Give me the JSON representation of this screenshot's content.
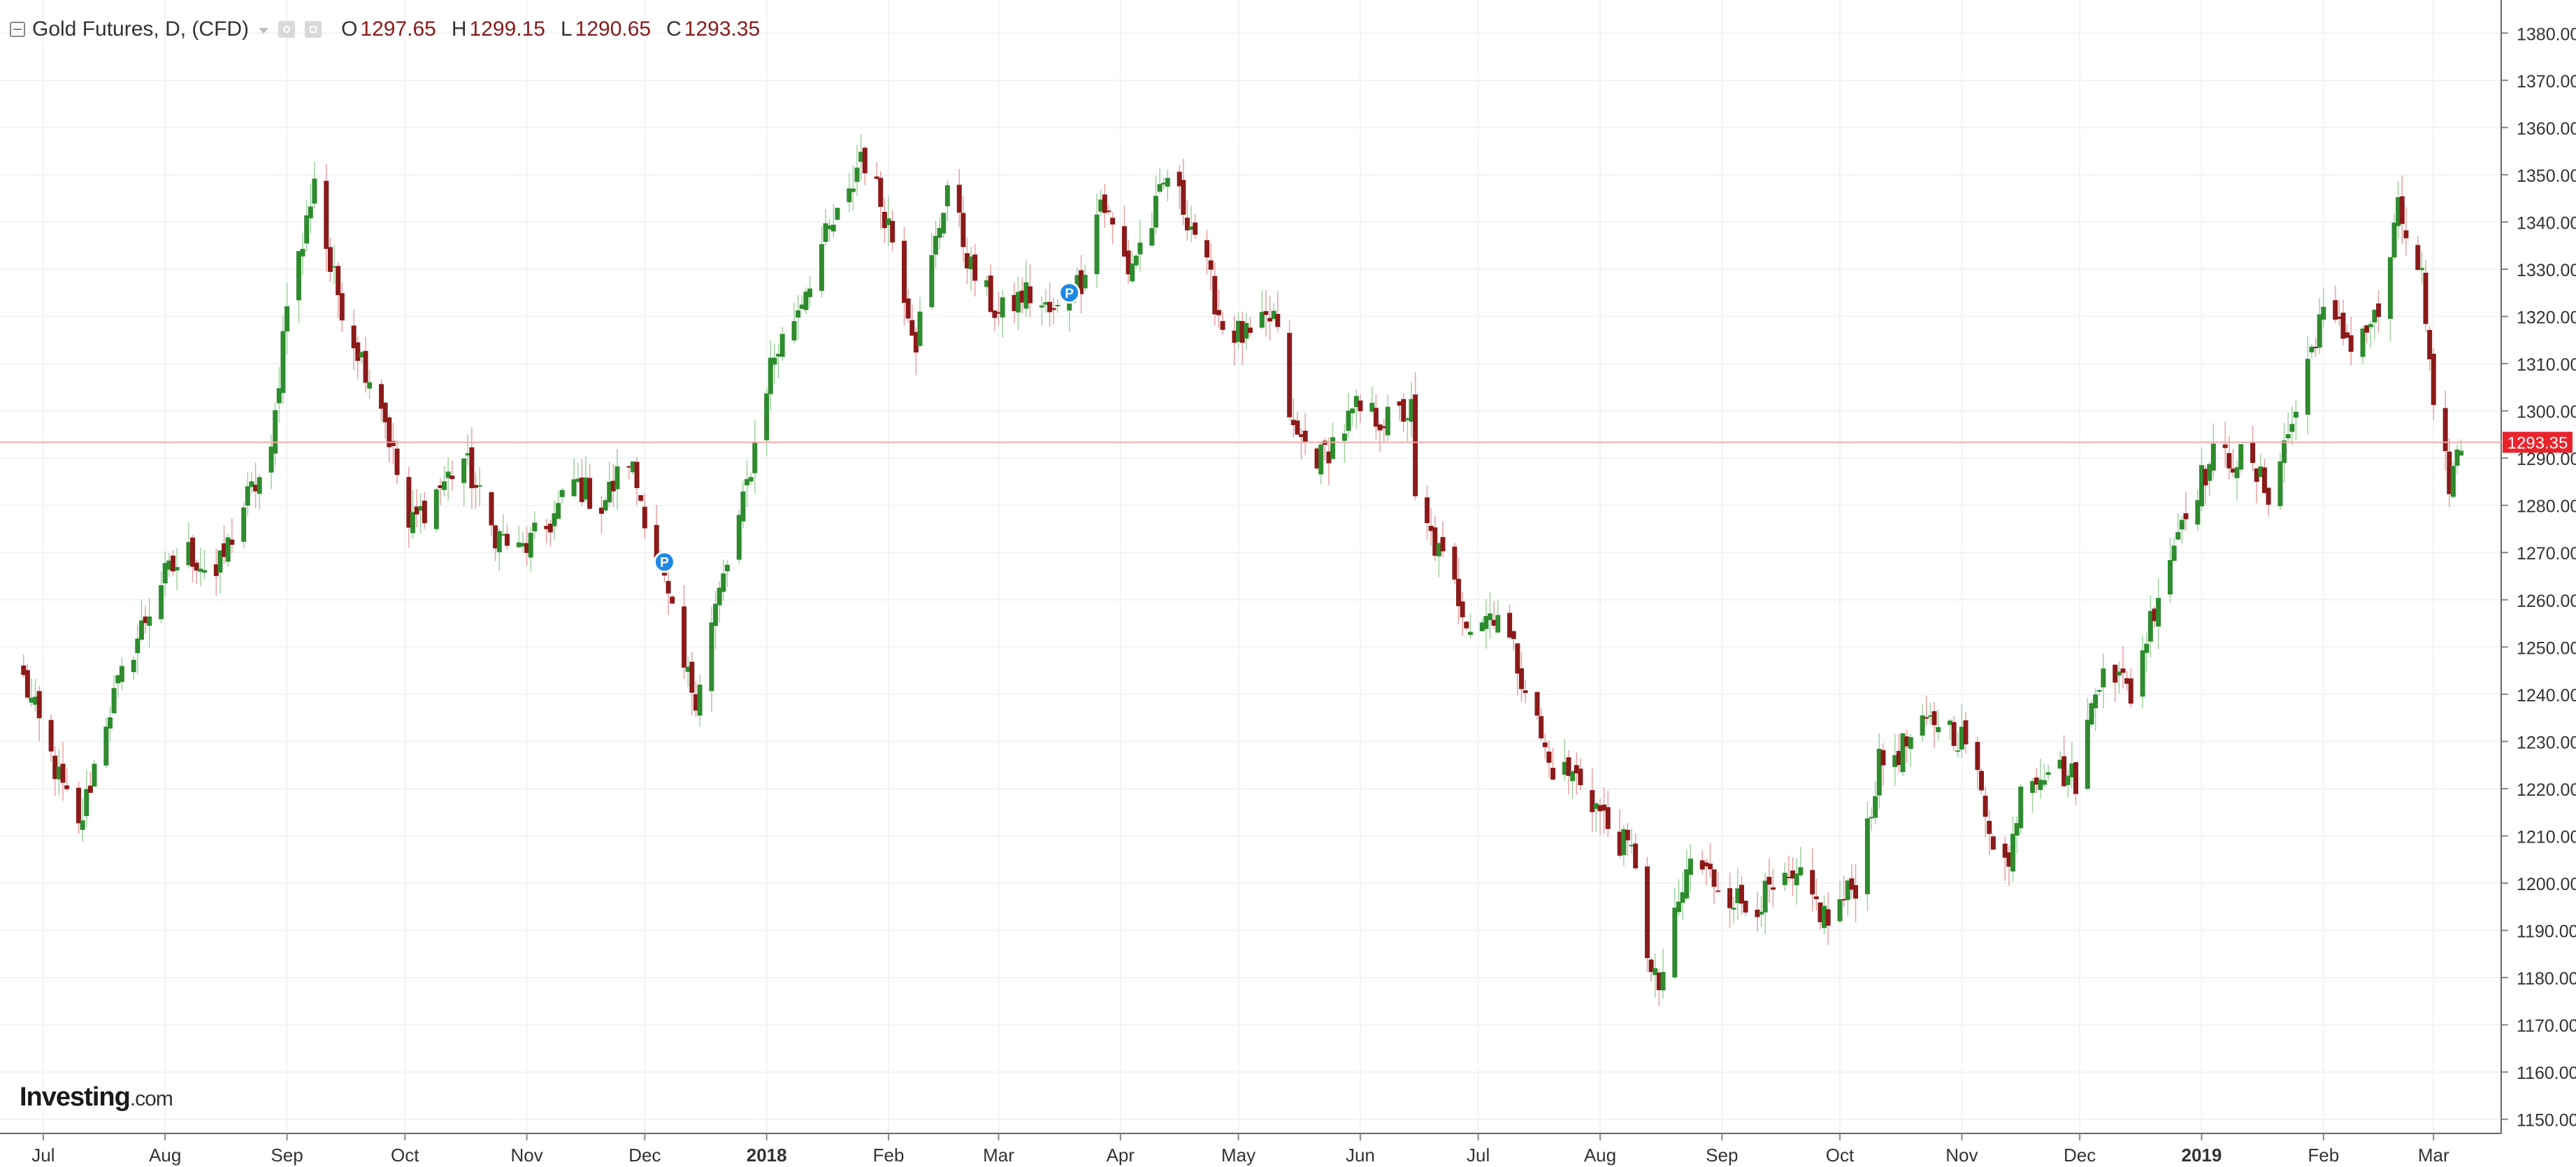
{
  "legend": {
    "title": "Gold Futures, D, (CFD)",
    "open_label": "O",
    "open_value": "1297.65",
    "high_label": "H",
    "high_value": "1299.15",
    "low_label": "L",
    "low_value": "1290.65",
    "close_label": "C",
    "close_value": "1293.35"
  },
  "branding": {
    "logo": "Investing",
    "logo_suffix": ".com"
  },
  "price_badge": "1293.35",
  "colors": {
    "up": "#2e8b2e",
    "down": "#8b1a1a",
    "price_line": "#f4a7a7",
    "price_badge": "#e8232c",
    "marker": "#1e88e5"
  },
  "chart_data": {
    "type": "candlestick",
    "title": "Gold Futures, D, (CFD)",
    "ylim": [
      1147,
      1387
    ],
    "y_ticks": [
      "1150.00",
      "1160.00",
      "1170.00",
      "1180.00",
      "1190.00",
      "1200.00",
      "1210.00",
      "1220.00",
      "1230.00",
      "1240.00",
      "1250.00",
      "1260.00",
      "1270.00",
      "1280.00",
      "1290.00",
      "1300.00",
      "1310.00",
      "1320.00",
      "1330.00",
      "1340.00",
      "1350.00",
      "1360.00",
      "1370.00",
      "1380.00"
    ],
    "x_ticks": [
      "Jul",
      "Aug",
      "Sep",
      "Oct",
      "Nov",
      "Dec",
      "2018",
      "Feb",
      "Mar",
      "Apr",
      "May",
      "Jun",
      "Jul",
      "Aug",
      "Sep",
      "Oct",
      "Nov",
      "Dec",
      "2019",
      "Feb",
      "Mar"
    ],
    "x_tick_bold": [
      "2018",
      "2019"
    ],
    "last_price": 1293.35,
    "markers": [
      {
        "label": "P",
        "date": "2017-12-06",
        "price": 1268
      },
      {
        "label": "P",
        "date": "2018-03-19",
        "price": 1325
      }
    ],
    "close_path": [
      [
        "2017-06-26",
        1243
      ],
      [
        "2017-07-05",
        1222
      ],
      [
        "2017-07-10",
        1211
      ],
      [
        "2017-07-17",
        1235
      ],
      [
        "2017-07-24",
        1250
      ],
      [
        "2017-07-31",
        1264
      ],
      [
        "2017-08-07",
        1270
      ],
      [
        "2017-08-14",
        1265
      ],
      [
        "2017-08-21",
        1280
      ],
      [
        "2017-08-28",
        1290
      ],
      [
        "2017-09-01",
        1325
      ],
      [
        "2017-09-05",
        1335
      ],
      [
        "2017-09-08",
        1350
      ],
      [
        "2017-09-12",
        1330
      ],
      [
        "2017-09-18",
        1315
      ],
      [
        "2017-09-25",
        1302
      ],
      [
        "2017-10-02",
        1275
      ],
      [
        "2017-10-09",
        1283
      ],
      [
        "2017-10-16",
        1290
      ],
      [
        "2017-10-23",
        1275
      ],
      [
        "2017-10-30",
        1270
      ],
      [
        "2017-11-06",
        1275
      ],
      [
        "2017-11-13",
        1285
      ],
      [
        "2017-11-20",
        1280
      ],
      [
        "2017-11-27",
        1290
      ],
      [
        "2017-12-04",
        1270
      ],
      [
        "2017-12-11",
        1245
      ],
      [
        "2017-12-14",
        1240
      ],
      [
        "2017-12-18",
        1255
      ],
      [
        "2017-12-26",
        1280
      ],
      [
        "2018-01-02",
        1310
      ],
      [
        "2018-01-08",
        1320
      ],
      [
        "2018-01-15",
        1335
      ],
      [
        "2018-01-22",
        1345
      ],
      [
        "2018-01-25",
        1355
      ],
      [
        "2018-02-01",
        1340
      ],
      [
        "2018-02-08",
        1315
      ],
      [
        "2018-02-16",
        1348
      ],
      [
        "2018-02-22",
        1330
      ],
      [
        "2018-03-01",
        1320
      ],
      [
        "2018-03-08",
        1325
      ],
      [
        "2018-03-15",
        1320
      ],
      [
        "2018-03-22",
        1328
      ],
      [
        "2018-03-27",
        1345
      ],
      [
        "2018-04-03",
        1330
      ],
      [
        "2018-04-09",
        1340
      ],
      [
        "2018-04-13",
        1350
      ],
      [
        "2018-04-20",
        1338
      ],
      [
        "2018-04-27",
        1318
      ],
      [
        "2018-05-04",
        1315
      ],
      [
        "2018-05-10",
        1320
      ],
      [
        "2018-05-15",
        1295
      ],
      [
        "2018-05-22",
        1290
      ],
      [
        "2018-05-31",
        1300
      ],
      [
        "2018-06-08",
        1298
      ],
      [
        "2018-06-14",
        1300
      ],
      [
        "2018-06-15",
        1280
      ],
      [
        "2018-06-22",
        1268
      ],
      [
        "2018-06-29",
        1255
      ],
      [
        "2018-07-06",
        1258
      ],
      [
        "2018-07-13",
        1242
      ],
      [
        "2018-07-19",
        1225
      ],
      [
        "2018-07-27",
        1222
      ],
      [
        "2018-08-03",
        1212
      ],
      [
        "2018-08-10",
        1205
      ],
      [
        "2018-08-14",
        1180
      ],
      [
        "2018-08-16",
        1178
      ],
      [
        "2018-08-24",
        1205
      ],
      [
        "2018-08-31",
        1200
      ],
      [
        "2018-09-07",
        1195
      ],
      [
        "2018-09-14",
        1198
      ],
      [
        "2018-09-21",
        1200
      ],
      [
        "2018-09-28",
        1192
      ],
      [
        "2018-10-05",
        1200
      ],
      [
        "2018-10-11",
        1225
      ],
      [
        "2018-10-19",
        1230
      ],
      [
        "2018-10-26",
        1235
      ],
      [
        "2018-11-02",
        1230
      ],
      [
        "2018-11-09",
        1210
      ],
      [
        "2018-11-13",
        1203
      ],
      [
        "2018-11-16",
        1222
      ],
      [
        "2018-11-23",
        1225
      ],
      [
        "2018-11-30",
        1222
      ],
      [
        "2018-12-07",
        1248
      ],
      [
        "2018-12-14",
        1240
      ],
      [
        "2018-12-21",
        1262
      ],
      [
        "2018-12-28",
        1280
      ],
      [
        "2019-01-04",
        1290
      ],
      [
        "2019-01-11",
        1290
      ],
      [
        "2019-01-18",
        1283
      ],
      [
        "2019-01-25",
        1300
      ],
      [
        "2019-01-31",
        1320
      ],
      [
        "2019-02-08",
        1315
      ],
      [
        "2019-02-15",
        1320
      ],
      [
        "2019-02-20",
        1342
      ],
      [
        "2019-02-26",
        1328
      ],
      [
        "2019-03-01",
        1298
      ],
      [
        "2019-03-05",
        1285
      ],
      [
        "2019-03-08",
        1293
      ]
    ]
  }
}
